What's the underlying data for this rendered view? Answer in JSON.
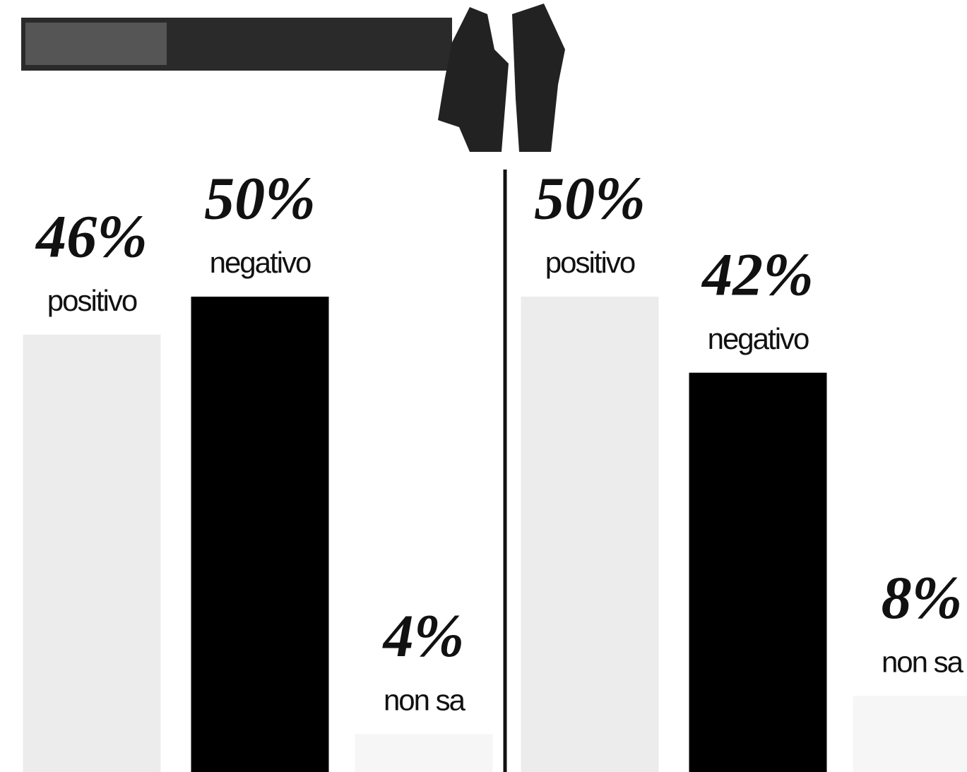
{
  "chart_data": [
    {
      "type": "bar",
      "categories": [
        "positivo",
        "negativo",
        "non sa"
      ],
      "values": [
        46,
        50,
        4
      ],
      "value_labels": [
        "46%",
        "50%",
        "4%"
      ],
      "colors": [
        "#ececec",
        "#000000",
        "#f6f6f6"
      ]
    },
    {
      "type": "bar",
      "categories": [
        "positivo",
        "negativo",
        "non sa"
      ],
      "values": [
        50,
        42,
        8
      ],
      "value_labels": [
        "50%",
        "42%",
        "8%"
      ],
      "colors": [
        "#ececec",
        "#000000",
        "#f6f6f6"
      ]
    }
  ]
}
